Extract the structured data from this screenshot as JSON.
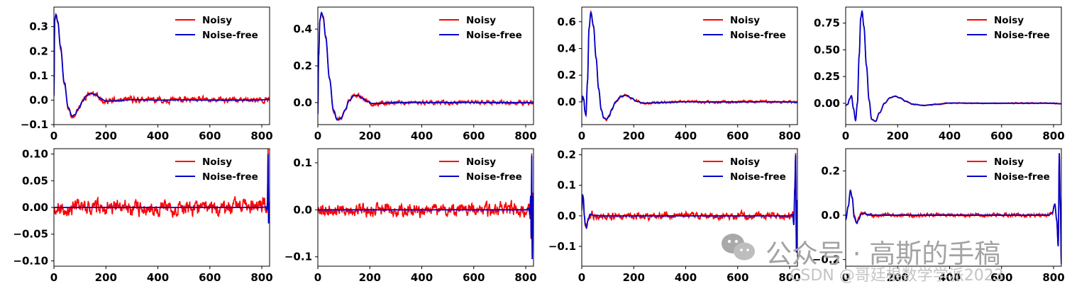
{
  "legend": {
    "noisy": "Noisy",
    "clean": "Noise-free"
  },
  "colors": {
    "noisy": "#ff0000",
    "clean": "#0000cc"
  },
  "watermark": {
    "main": "公众号 · 高斯的手稿",
    "sub": "CSDN @哥廷根数学学派2023"
  },
  "chart_data": [
    {
      "type": "line",
      "xlim": [
        0,
        830
      ],
      "ylim": [
        -0.1,
        0.38
      ],
      "xticks": [
        "0",
        "200",
        "400",
        "600",
        "800"
      ],
      "xtick_values": [
        0,
        200,
        400,
        600,
        800
      ],
      "yticks": [
        "−0.1",
        "0.0",
        "0.1",
        "0.2",
        "0.3"
      ],
      "ytick_values": [
        -0.1,
        0,
        0.1,
        0.2,
        0.3
      ],
      "series": [
        {
          "name": "Noisy",
          "noise": 0.009,
          "seed": 11
        },
        {
          "name": "Noise-free",
          "x": [
            0,
            3,
            8,
            15,
            25,
            40,
            55,
            70,
            80,
            95,
            110,
            125,
            140,
            160,
            180,
            200,
            240,
            300,
            400,
            500,
            600,
            700,
            800,
            830
          ],
          "y": [
            0.02,
            0.33,
            0.35,
            0.32,
            0.22,
            0.07,
            -0.03,
            -0.065,
            -0.06,
            -0.035,
            -0.005,
            0.018,
            0.028,
            0.022,
            0.006,
            -0.004,
            -0.003,
            0.002,
            0.0,
            0.001,
            0.0,
            0.0,
            0.001,
            0.003
          ]
        }
      ]
    },
    {
      "type": "line",
      "xlim": [
        0,
        830
      ],
      "ylim": [
        -0.12,
        0.52
      ],
      "xticks": [
        "0",
        "200",
        "400",
        "600",
        "800"
      ],
      "xtick_values": [
        0,
        200,
        400,
        600,
        800
      ],
      "yticks": [
        "0.0",
        "0.2",
        "0.4"
      ],
      "ytick_values": [
        0,
        0.2,
        0.4
      ],
      "series": [
        {
          "name": "Noisy",
          "noise": 0.008,
          "seed": 23
        },
        {
          "name": "Noise-free",
          "x": [
            0,
            3,
            8,
            14,
            20,
            30,
            45,
            60,
            75,
            90,
            105,
            120,
            140,
            155,
            170,
            190,
            210,
            240,
            300,
            400,
            500,
            600,
            700,
            800,
            830
          ],
          "y": [
            -0.06,
            0.25,
            0.45,
            0.49,
            0.47,
            0.36,
            0.13,
            -0.04,
            -0.095,
            -0.085,
            -0.04,
            0.01,
            0.038,
            0.04,
            0.025,
            0.006,
            -0.005,
            -0.004,
            0.0,
            0.001,
            0.0,
            0.001,
            0.0,
            0.0,
            -0.002
          ]
        }
      ]
    },
    {
      "type": "line",
      "xlim": [
        0,
        830
      ],
      "ylim": [
        -0.17,
        0.71
      ],
      "xticks": [
        "0",
        "200",
        "400",
        "600",
        "800"
      ],
      "xtick_values": [
        0,
        200,
        400,
        600,
        800
      ],
      "yticks": [
        "0.0",
        "0.2",
        "0.4",
        "0.6"
      ],
      "ytick_values": [
        0,
        0.2,
        0.4,
        0.6
      ],
      "series": [
        {
          "name": "Noisy",
          "noise": 0.007,
          "seed": 37
        },
        {
          "name": "Noise-free",
          "x": [
            0,
            4,
            8,
            12,
            16,
            22,
            28,
            35,
            45,
            55,
            65,
            75,
            85,
            95,
            105,
            115,
            130,
            150,
            170,
            190,
            210,
            240,
            280,
            330,
            400,
            500,
            600,
            700,
            800,
            830
          ],
          "y": [
            0.0,
            0.04,
            0.02,
            -0.07,
            -0.1,
            0.15,
            0.55,
            0.67,
            0.57,
            0.33,
            0.1,
            -0.06,
            -0.12,
            -0.13,
            -0.11,
            -0.06,
            0.0,
            0.04,
            0.05,
            0.03,
            0.005,
            -0.01,
            -0.007,
            -0.003,
            0.001,
            0.0,
            0.0,
            0.001,
            0.0,
            -0.004
          ]
        }
      ]
    },
    {
      "type": "line",
      "xlim": [
        0,
        830
      ],
      "ylim": [
        -0.2,
        0.9
      ],
      "xticks": [
        "0",
        "200",
        "400",
        "600",
        "800"
      ],
      "xtick_values": [
        0,
        200,
        400,
        600,
        800
      ],
      "yticks": [
        "0.00",
        "0.25",
        "0.50",
        "0.75"
      ],
      "ytick_values": [
        0,
        0.25,
        0.5,
        0.75
      ],
      "series": [
        {
          "name": "Noisy",
          "noise": 0.004,
          "seed": 51
        },
        {
          "name": "Noise-free",
          "x": [
            0,
            8,
            15,
            22,
            30,
            38,
            45,
            52,
            58,
            63,
            70,
            80,
            90,
            100,
            115,
            130,
            150,
            170,
            190,
            210,
            230,
            260,
            300,
            350,
            400,
            500,
            600,
            700,
            800,
            830
          ],
          "y": [
            -0.02,
            -0.01,
            0.04,
            0.07,
            -0.05,
            -0.16,
            0.0,
            0.45,
            0.8,
            0.86,
            0.72,
            0.35,
            0.03,
            -0.15,
            -0.17,
            -0.09,
            0.0,
            0.05,
            0.065,
            0.05,
            0.02,
            -0.01,
            -0.02,
            -0.01,
            0.002,
            0.0,
            0.0,
            0.0,
            0.0,
            -0.006
          ]
        }
      ]
    },
    {
      "type": "line",
      "xlim": [
        0,
        830
      ],
      "ylim": [
        -0.11,
        0.11
      ],
      "xticks": [
        "0",
        "200",
        "400",
        "600",
        "800"
      ],
      "xtick_values": [
        0,
        200,
        400,
        600,
        800
      ],
      "yticks": [
        "−0.10",
        "−0.05",
        "0.00",
        "0.05",
        "0.10"
      ],
      "ytick_values": [
        -0.1,
        -0.05,
        0,
        0.05,
        0.1
      ],
      "series": [
        {
          "name": "Noisy",
          "noise": 0.011,
          "seed": 67
        },
        {
          "name": "Noise-free",
          "x": [
            0,
            800,
            815,
            820,
            822,
            824,
            826,
            828,
            830
          ],
          "y": [
            0,
            0,
            0.001,
            -0.004,
            0.012,
            0.1,
            -0.03,
            0.01,
            -0.005
          ]
        }
      ]
    },
    {
      "type": "line",
      "xlim": [
        0,
        830
      ],
      "ylim": [
        -0.12,
        0.13
      ],
      "xticks": [
        "0",
        "200",
        "400",
        "600",
        "800"
      ],
      "xtick_values": [
        0,
        200,
        400,
        600,
        800
      ],
      "yticks": [
        "−0.1",
        "0.0",
        "0.1"
      ],
      "ytick_values": [
        -0.1,
        0,
        0.1
      ],
      "series": [
        {
          "name": "Noisy",
          "noise": 0.011,
          "seed": 79
        },
        {
          "name": "Noise-free",
          "x": [
            0,
            800,
            812,
            816,
            819,
            821,
            823,
            825,
            827,
            830
          ],
          "y": [
            0,
            0,
            0.003,
            -0.01,
            0.03,
            -0.06,
            0.115,
            -0.105,
            0.03,
            0.005
          ]
        }
      ]
    },
    {
      "type": "line",
      "xlim": [
        0,
        830
      ],
      "ylim": [
        -0.165,
        0.22
      ],
      "xticks": [
        "0",
        "200",
        "400",
        "600",
        "800"
      ],
      "xtick_values": [
        0,
        200,
        400,
        600,
        800
      ],
      "yticks": [
        "−0.1",
        "0.0",
        "0.1",
        "0.2"
      ],
      "ytick_values": [
        -0.1,
        0,
        0.1,
        0.2
      ],
      "series": [
        {
          "name": "Noisy",
          "noise": 0.009,
          "seed": 91
        },
        {
          "name": "Noise-free",
          "x": [
            0,
            3,
            6,
            10,
            14,
            18,
            24,
            32,
            40,
            50,
            60,
            80,
            800,
            812,
            816,
            820,
            823,
            826,
            828,
            830
          ],
          "y": [
            0.02,
            0.07,
            0.06,
            0.0,
            -0.03,
            -0.04,
            -0.015,
            0.005,
            0.003,
            0.0,
            0.001,
            0.0,
            0.0,
            0.004,
            -0.03,
            0.09,
            0.2,
            -0.12,
            0.05,
            -0.01
          ]
        }
      ]
    },
    {
      "type": "line",
      "xlim": [
        0,
        830
      ],
      "ylim": [
        -0.23,
        0.3
      ],
      "xticks": [
        "0",
        "200",
        "400",
        "600",
        "800"
      ],
      "xtick_values": [
        0,
        200,
        400,
        600,
        800
      ],
      "yticks": [
        "−0.2",
        "0.0",
        "0.2"
      ],
      "ytick_values": [
        -0.2,
        0,
        0.2
      ],
      "series": [
        {
          "name": "Noisy",
          "noise": 0.006,
          "seed": 103
        },
        {
          "name": "Noise-free",
          "x": [
            0,
            10,
            18,
            25,
            33,
            42,
            50,
            60,
            70,
            80,
            100,
            140,
            200,
            300,
            400,
            500,
            600,
            700,
            780,
            795,
            805,
            812,
            818,
            822,
            826,
            830
          ],
          "y": [
            -0.02,
            0.04,
            0.11,
            0.08,
            -0.01,
            -0.035,
            -0.02,
            0.005,
            0.01,
            0.004,
            0.0,
            0.0,
            0.0,
            0.0,
            0.0,
            0.0,
            0.0,
            0.0,
            0.0,
            0.01,
            0.05,
            -0.02,
            -0.14,
            0.28,
            0.05,
            -0.22
          ]
        }
      ]
    }
  ]
}
